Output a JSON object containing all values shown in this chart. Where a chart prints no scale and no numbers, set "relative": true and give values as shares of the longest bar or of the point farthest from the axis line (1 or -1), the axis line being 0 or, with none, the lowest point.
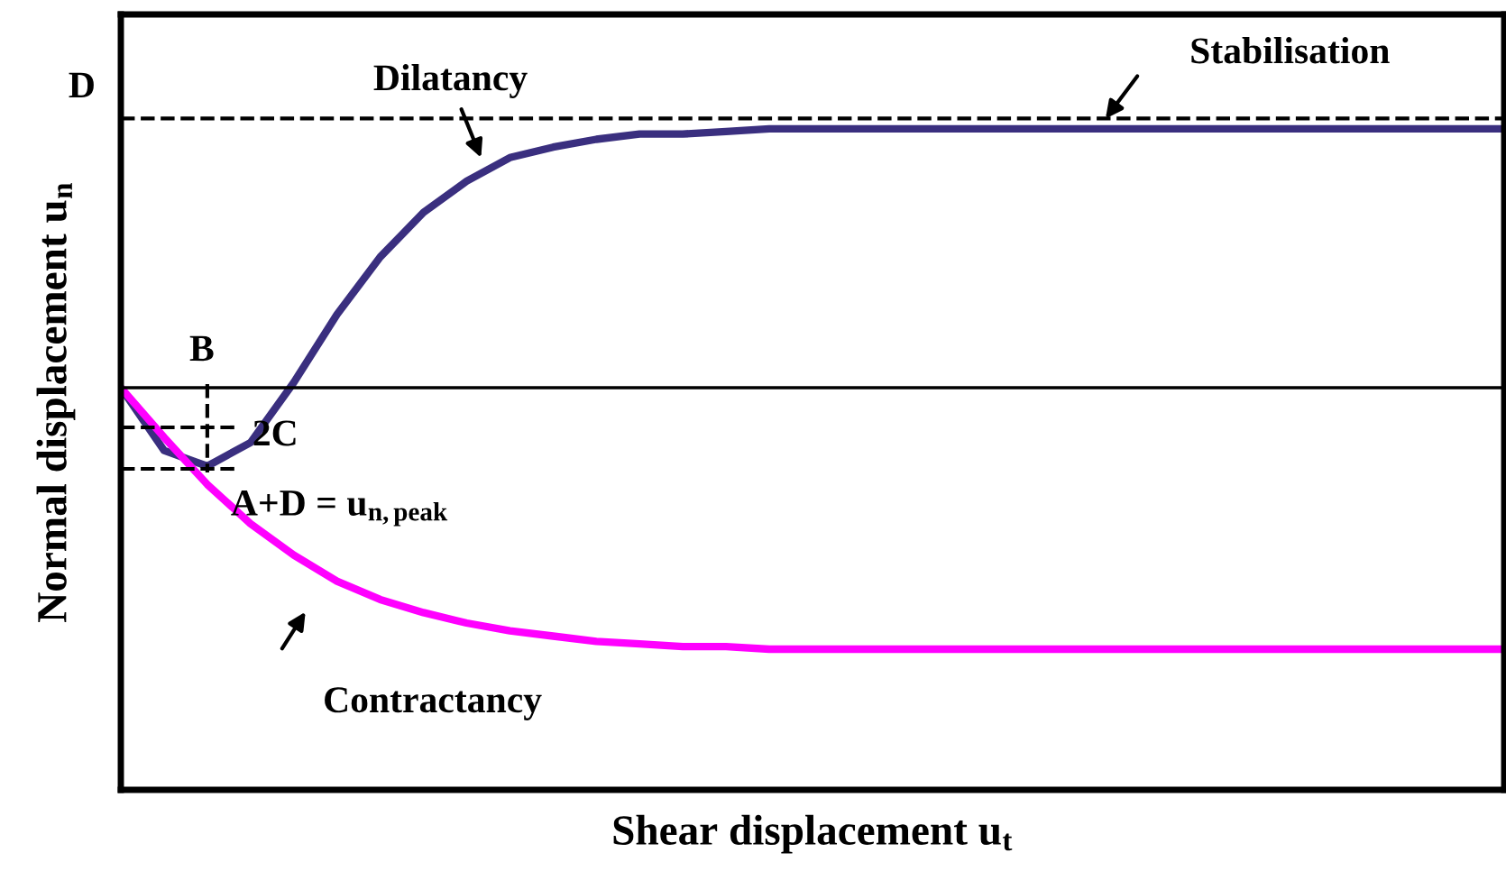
{
  "chart_data": {
    "type": "line",
    "relative": true,
    "xlabel": "Shear displacement u$_{t}$",
    "ylabel": "Normal displacement u$_{n}$",
    "categories": [
      null,
      null,
      null,
      null,
      null,
      null,
      null,
      null,
      null,
      null,
      null,
      null,
      null,
      null,
      null,
      null,
      null,
      null,
      null,
      null,
      null,
      null,
      null,
      null,
      null,
      null,
      null,
      null,
      null,
      null,
      null,
      null,
      null
    ],
    "series": [
      {
        "color": "#3a2f7f",
        "values": [
          0,
          -0.24,
          -0.3,
          -0.21,
          0.02,
          0.28,
          0.5,
          0.67,
          0.79,
          0.88,
          0.92,
          0.95,
          0.97,
          0.97,
          0.98,
          0.99,
          0.99,
          0.99,
          0.99,
          0.99,
          0.99,
          0.99,
          0.99,
          0.99,
          0.99,
          0.99,
          0.99,
          0.99,
          0.99,
          0.99,
          0.99,
          0.99,
          0.99
        ]
      },
      {
        "color": "#ff00ff",
        "values": [
          0,
          -0.19,
          -0.37,
          -0.52,
          -0.64,
          -0.74,
          -0.81,
          -0.86,
          -0.9,
          -0.93,
          -0.95,
          -0.97,
          -0.98,
          -0.99,
          -0.99,
          -1,
          -1,
          -1,
          -1,
          -1,
          -1,
          -1,
          -1,
          -1,
          -1,
          -1,
          -1,
          -1,
          -1,
          -1,
          -1,
          -1,
          -1
        ]
      }
    ],
    "ref_lines": [
      {
        "axis": "y",
        "value": 1.03,
        "label": "D",
        "color": "#000000",
        "line_style": "dashed"
      }
    ],
    "annotations": [
      "Dilatancy",
      "Stabilisation",
      "Contractancy",
      "B",
      "2C",
      "A+D = u$_{n,peak}$"
    ],
    "legend": false,
    "marker": "none",
    "line_style": "solid"
  }
}
